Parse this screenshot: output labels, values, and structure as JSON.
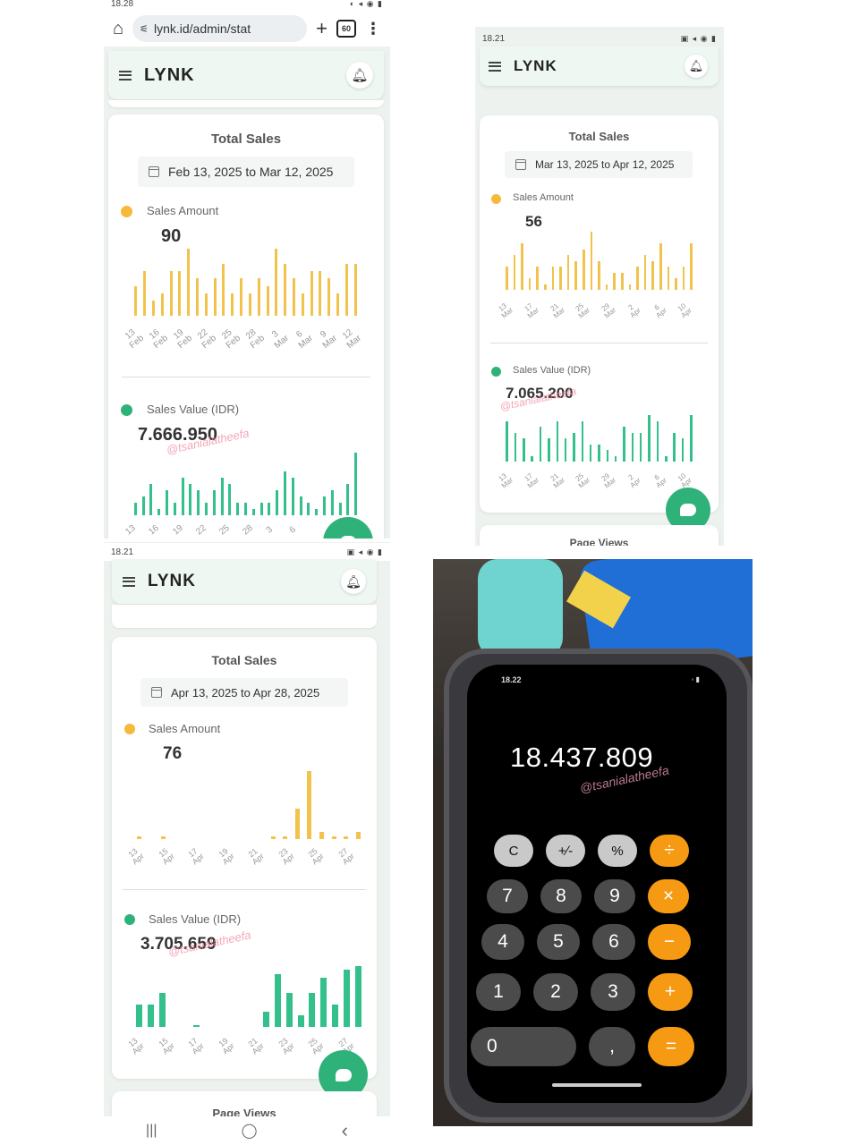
{
  "screens": [
    {
      "status_time": "18.28",
      "status_icons": "◐ ◂ ◉ ▮",
      "url_bar": {
        "url": "lynk.id/admin/stat",
        "tabs_count": "60",
        "home_icon": "home-icon",
        "plus_icon": "plus-icon",
        "more_icon": "kebab-icon"
      },
      "app_logo": "LYNK",
      "card_title": "Total Sales",
      "date_range": "Feb 13, 2025 to Mar 12, 2025",
      "amount_label": "Sales Amount",
      "amount_value": "90",
      "value_label": "Sales Value (IDR)",
      "value_value": "7.666.950",
      "watermark": "@tsanialatheefa",
      "amount_ticks": [
        [
          "13",
          "Feb"
        ],
        [
          "16",
          "Feb"
        ],
        [
          "19",
          "Feb"
        ],
        [
          "22",
          "Feb"
        ],
        [
          "25",
          "Feb"
        ],
        [
          "28",
          "Feb"
        ],
        [
          "3",
          "Mar"
        ],
        [
          "6",
          "Mar"
        ],
        [
          "9",
          "Mar"
        ],
        [
          "12",
          "Mar"
        ]
      ],
      "value_ticks": [
        [
          "13",
          ""
        ],
        [
          "16",
          ""
        ],
        [
          "19",
          ""
        ],
        [
          "22",
          ""
        ],
        [
          "25",
          ""
        ],
        [
          "28",
          ""
        ],
        [
          "3",
          ""
        ],
        [
          "6",
          ""
        ]
      ]
    },
    {
      "status_time": "18.21",
      "status_icons": "▣ ◂ ◉ ▮",
      "app_logo": "LYNK",
      "card_title": "Total Sales",
      "date_range": "Mar 13, 2025 to Apr 12, 2025",
      "amount_label": "Sales Amount",
      "amount_value": "56",
      "value_label": "Sales Value (IDR)",
      "value_value": "7.065.200",
      "watermark": "@tsanialatheefa",
      "next_card": "Page Views",
      "amount_ticks": [
        [
          "13",
          "Mar"
        ],
        [
          "17",
          "Mar"
        ],
        [
          "21",
          "Mar"
        ],
        [
          "25",
          "Mar"
        ],
        [
          "29",
          "Mar"
        ],
        [
          "2",
          "Apr"
        ],
        [
          "6",
          "Apr"
        ],
        [
          "10",
          "Apr"
        ]
      ],
      "value_ticks": [
        [
          "13",
          "Mar"
        ],
        [
          "17",
          "Mar"
        ],
        [
          "21",
          "Mar"
        ],
        [
          "25",
          "Mar"
        ],
        [
          "29",
          "Mar"
        ],
        [
          "2",
          "Apr"
        ],
        [
          "6",
          "Apr"
        ],
        [
          "10",
          "Apr"
        ]
      ]
    },
    {
      "status_time": "18.21",
      "status_icons": "▣ ◂ ◉ ▮",
      "app_logo": "LYNK",
      "card_title": "Total Sales",
      "date_range": "Apr 13, 2025 to Apr 28, 2025",
      "amount_label": "Sales Amount",
      "amount_value": "76",
      "value_label": "Sales Value (IDR)",
      "value_value": "3.705.659",
      "watermark": "@tsanialatheefa",
      "next_card": "Page Views",
      "amount_ticks": [
        [
          "13",
          "Apr"
        ],
        [
          "15",
          "Apr"
        ],
        [
          "17",
          "Apr"
        ],
        [
          "19",
          "Apr"
        ],
        [
          "21",
          "Apr"
        ],
        [
          "23",
          "Apr"
        ],
        [
          "25",
          "Apr"
        ],
        [
          "27",
          "Apr"
        ]
      ],
      "value_ticks": [
        [
          "13",
          "Apr"
        ],
        [
          "15",
          "Apr"
        ],
        [
          "17",
          "Apr"
        ],
        [
          "19",
          "Apr"
        ],
        [
          "21",
          "Apr"
        ],
        [
          "23",
          "Apr"
        ],
        [
          "25",
          "Apr"
        ],
        [
          "27",
          "Apr"
        ]
      ]
    }
  ],
  "chart_data": [
    {
      "type": "bar",
      "title": "Sales Amount",
      "series": [
        {
          "name": "Sales Amount",
          "color": "#f2c34c",
          "values": [
            4,
            6,
            2,
            3,
            6,
            6,
            9,
            5,
            3,
            5,
            7,
            3,
            5,
            3,
            5,
            4,
            9,
            7,
            5,
            3,
            6,
            6,
            5,
            3,
            7,
            7
          ]
        }
      ]
    },
    {
      "type": "bar",
      "title": "Sales Value (IDR)",
      "series": [
        {
          "name": "Sales Value (IDR)",
          "color": "#33c08a",
          "values": [
            2,
            3,
            5,
            1,
            4,
            2,
            6,
            5,
            4,
            2,
            4,
            6,
            5,
            2,
            2,
            1,
            2,
            2,
            4,
            7,
            6,
            3,
            2,
            1,
            3,
            4,
            2,
            5,
            10
          ]
        }
      ]
    },
    {
      "type": "bar",
      "title": "Sales Amount",
      "series": [
        {
          "name": "Sales Amount",
          "color": "#f2c34c",
          "values": [
            4,
            6,
            8,
            2,
            4,
            1,
            4,
            4,
            6,
            5,
            7,
            10,
            5,
            1,
            3,
            3,
            1,
            4,
            6,
            5,
            8,
            4,
            2,
            4,
            8
          ]
        }
      ]
    },
    {
      "type": "bar",
      "title": "Sales Value (IDR)",
      "series": [
        {
          "name": "Sales Value (IDR)",
          "color": "#33c08a",
          "values": [
            7,
            5,
            4,
            1,
            6,
            4,
            7,
            4,
            5,
            7,
            3,
            3,
            2,
            1,
            6,
            5,
            5,
            8,
            7,
            1,
            5,
            4,
            8
          ]
        }
      ]
    },
    {
      "type": "bar",
      "title": "Sales Amount",
      "series": [
        {
          "name": "Sales Amount",
          "color": "#f2c34c",
          "values": [
            0.3,
            0,
            0.3,
            0,
            0,
            0,
            0,
            0,
            0,
            0,
            0,
            0.3,
            0.3,
            4,
            9,
            1,
            0.3,
            0.3,
            1
          ]
        }
      ]
    },
    {
      "type": "bar",
      "title": "Sales Value (IDR)",
      "series": [
        {
          "name": "Sales Value (IDR)",
          "color": "#33c08a",
          "values": [
            6,
            6,
            9,
            0,
            0,
            0.5,
            0,
            0,
            0,
            0,
            0,
            4,
            14,
            9,
            3,
            9,
            13,
            6,
            15,
            16
          ]
        }
      ]
    }
  ],
  "calculator": {
    "display": "18.437.809",
    "time": "18.22",
    "watermark": "@tsanialatheefa",
    "keys": [
      [
        "C",
        "+∕-",
        "%",
        "÷"
      ],
      [
        "7",
        "8",
        "9",
        "×"
      ],
      [
        "4",
        "5",
        "6",
        "−"
      ],
      [
        "1",
        "2",
        "3",
        "+"
      ],
      [
        "0",
        ",",
        "="
      ]
    ]
  },
  "nav": {
    "recents": "|||",
    "home": "◯",
    "back": "‹"
  }
}
